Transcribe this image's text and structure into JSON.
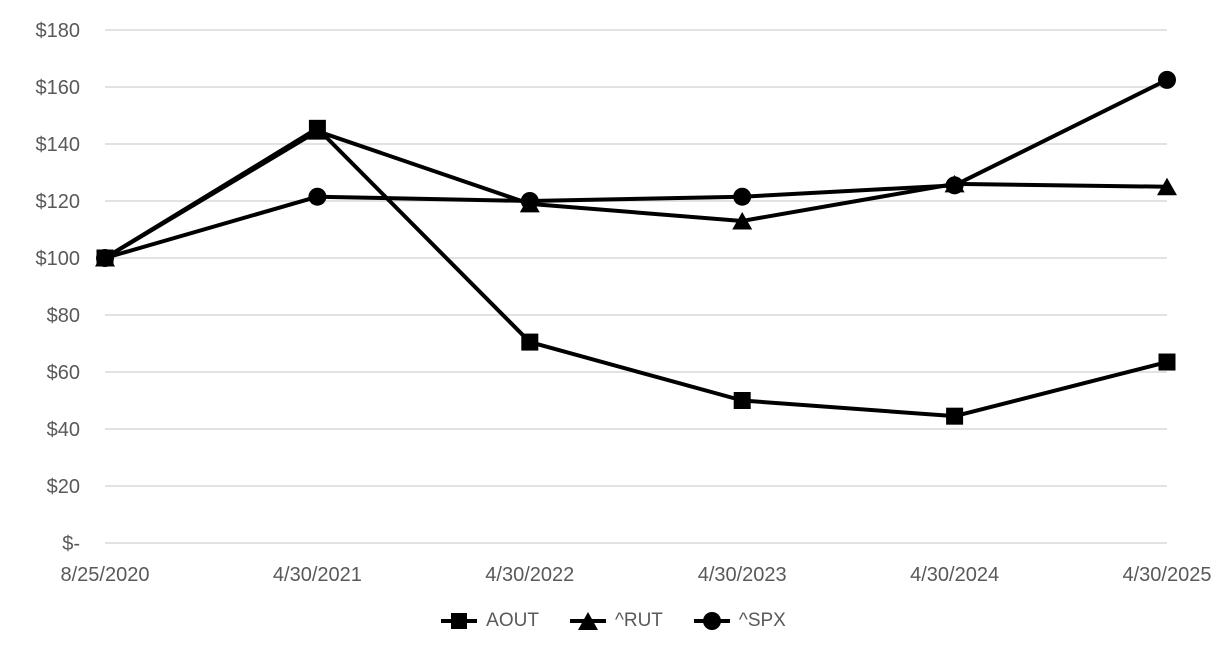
{
  "chart_data": {
    "type": "line",
    "title": "",
    "xlabel": "",
    "ylabel": "",
    "categories": [
      "8/25/2020",
      "4/30/2021",
      "4/30/2022",
      "4/30/2023",
      "4/30/2024",
      "4/30/2025"
    ],
    "series": [
      {
        "name": "AOUT",
        "marker": "square",
        "values": [
          100,
          145.5,
          70.5,
          50,
          44.5,
          63.5
        ]
      },
      {
        "name": "^RUT",
        "marker": "triangle",
        "values": [
          100,
          144.5,
          119,
          113,
          126,
          125
        ]
      },
      {
        "name": "^SPX",
        "marker": "circle",
        "values": [
          100,
          121.5,
          120,
          121.5,
          125.5,
          162.5
        ]
      }
    ],
    "y_ticks": [
      {
        "label": "$180",
        "value": 180
      },
      {
        "label": "$160",
        "value": 160
      },
      {
        "label": "$140",
        "value": 140
      },
      {
        "label": "$120",
        "value": 120
      },
      {
        "label": "$100",
        "value": 100
      },
      {
        "label": "$80",
        "value": 80
      },
      {
        "label": "$60",
        "value": 60
      },
      {
        "label": "$40",
        "value": 40
      },
      {
        "label": "$20",
        "value": 20
      },
      {
        "label": "$-",
        "value": 0
      }
    ],
    "ylim": [
      0,
      180
    ],
    "grid": "horizontal",
    "legend_position": "bottom",
    "colors": {
      "series": "#000000",
      "gridline": "#d9d9d9",
      "label": "#595959",
      "background": "#ffffff"
    }
  }
}
